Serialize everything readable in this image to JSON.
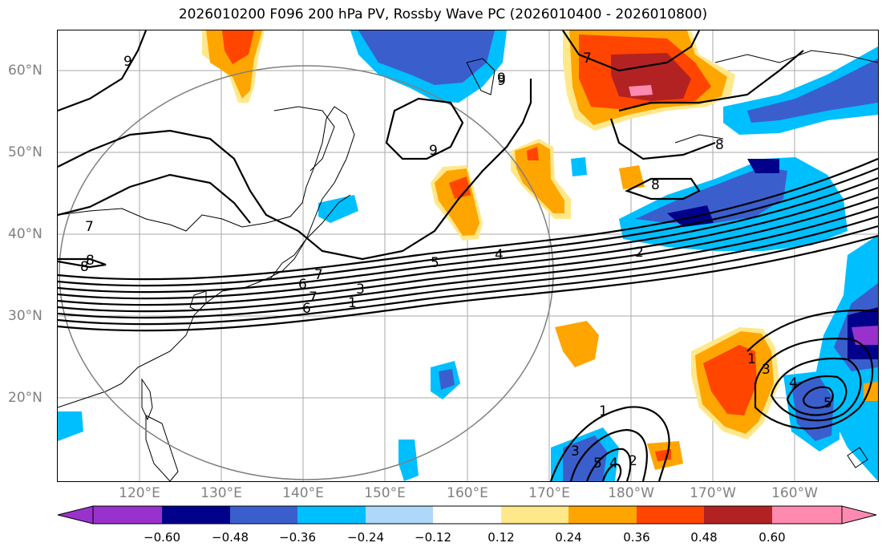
{
  "title": "2026010200 F096 200 hPa PV, Rossby Wave PC (2026010400 - 2026010800)",
  "lat_labels": [
    "60°N",
    "50°N",
    "40°N",
    "30°N",
    "20°N"
  ],
  "lon_labels": [
    "120°E",
    "130°E",
    "140°E",
    "150°E",
    "160°E",
    "170°E",
    "180°W",
    "170°W",
    "160°W"
  ],
  "contour_labels": [
    "9",
    "9",
    "9",
    "7",
    "7",
    "8",
    "8",
    "7",
    "6",
    "5",
    "4",
    "3",
    "2",
    "1",
    "1",
    "3",
    "4",
    "5",
    "6",
    "7",
    "8",
    "9",
    "8",
    "1",
    "2",
    "3",
    "4",
    "5"
  ],
  "colorbar": {
    "ticks": [
      "−0.60",
      "−0.48",
      "−0.36",
      "−0.24",
      "−0.12",
      "0.12",
      "0.24",
      "0.36",
      "0.48",
      "0.60"
    ],
    "colors": [
      "#9932cc",
      "#00008b",
      "#3a5fcd",
      "#00bfff",
      "#add8f8",
      "#ffffff",
      "#ffe88a",
      "#ffa500",
      "#ff4500",
      "#b22222",
      "#ff8ab0"
    ]
  }
}
